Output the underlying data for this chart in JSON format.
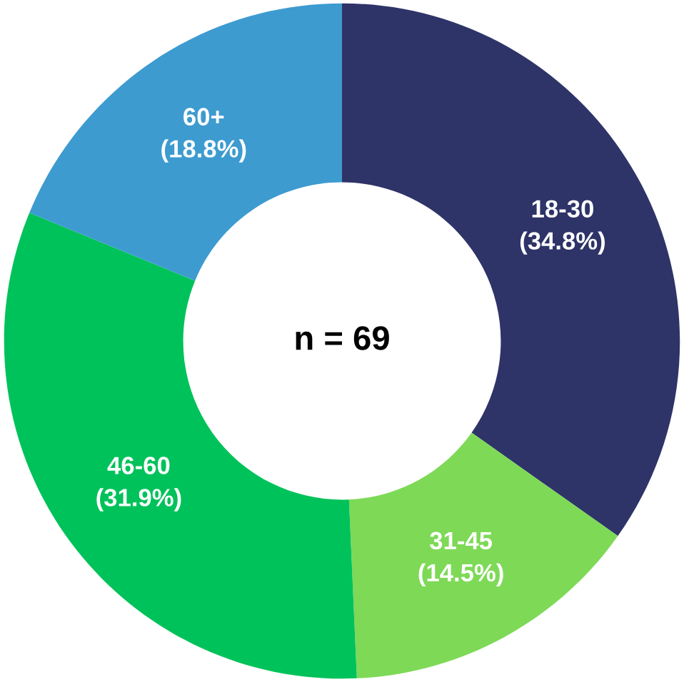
{
  "chart_data": {
    "type": "donut",
    "categories": [
      "18-30",
      "31-45",
      "46-60",
      "60+"
    ],
    "values": [
      34.8,
      14.5,
      31.9,
      18.8
    ],
    "value_labels": [
      "(34.8%)",
      "(14.5%)",
      "(31.9%)",
      "(18.8%)"
    ],
    "colors": [
      "#2e3468",
      "#7ed957",
      "#00c25a",
      "#3d9bd0"
    ],
    "annotations": [
      "n = 69"
    ],
    "legend": false
  }
}
